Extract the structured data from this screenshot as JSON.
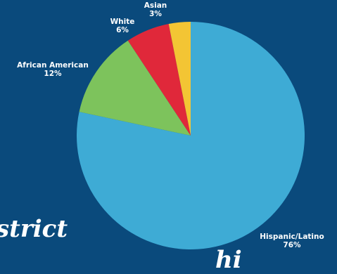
{
  "background_text": [
    "strict",
    "hi"
  ],
  "chart_data": {
    "type": "pie",
    "title": "",
    "slices": [
      {
        "label": "Hispanic/Latino",
        "value": 76,
        "value_label": "76%",
        "color": "#3eabd5"
      },
      {
        "label": "African American",
        "value": 12,
        "value_label": "12%",
        "color": "#7dc35c"
      },
      {
        "label": "White",
        "value": 6,
        "value_label": "6%",
        "color": "#e0283a"
      },
      {
        "label": "Asian",
        "value": 3,
        "value_label": "3%",
        "color": "#f3c534"
      }
    ],
    "colors": {
      "background": "#0a4a7c",
      "label_text": "#ffffff"
    }
  }
}
